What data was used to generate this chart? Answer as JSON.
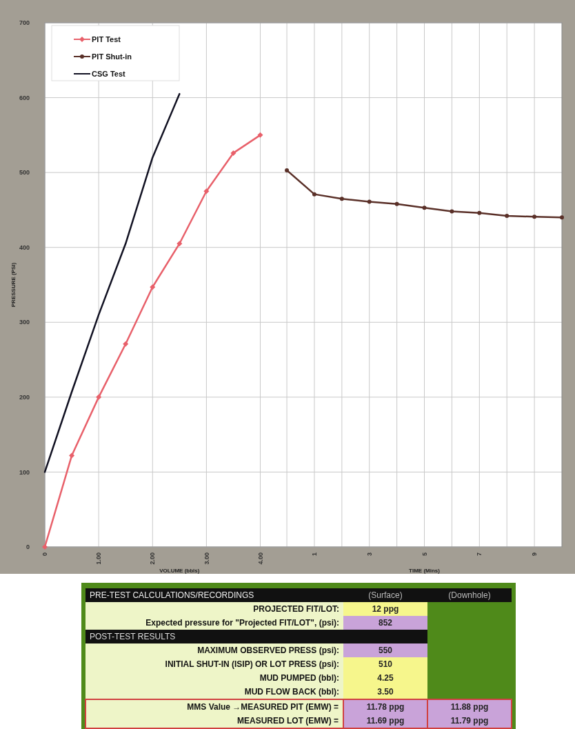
{
  "chart_data": [
    {
      "type": "line",
      "ylabel": "PRESSURE (PSI)",
      "xlabel": "VOLUME (bbls)",
      "x2label": "TIME (Mins)",
      "xlim": [
        0,
        9.6
      ],
      "xticks": [
        0,
        {
          "value": 1,
          "label": "1.00"
        },
        {
          "value": 2,
          "label": "2.00"
        },
        {
          "value": 3,
          "label": "3.00"
        },
        {
          "value": 4,
          "label": "4.00"
        }
      ],
      "x2lim": [
        -8.8,
        10
      ],
      "x2ticks": [
        {
          "value": 0,
          "label": null
        },
        1,
        {
          "value": 2,
          "label": null
        },
        3,
        {
          "value": 4,
          "label": null
        },
        5,
        {
          "value": 6,
          "label": null
        },
        7,
        {
          "value": 8,
          "label": null
        },
        9
      ],
      "ylim": [
        0,
        700
      ],
      "yticks": [
        0,
        100,
        200,
        300,
        400,
        500,
        600,
        700
      ],
      "grid": true,
      "legend": "top left",
      "series": [
        {
          "name": "PIT Test",
          "color": "#e8606a",
          "marker": "diamond",
          "x": [
            0,
            0.5,
            1,
            1.5,
            2,
            2.5,
            3,
            3.5,
            4
          ],
          "values": [
            0,
            122,
            200,
            271,
            347,
            405,
            475,
            526,
            550
          ]
        },
        {
          "name": "PIT Shut-in",
          "color": "#5a3028",
          "marker": "circle",
          "axis": "x2",
          "x": [
            0,
            1,
            2,
            3,
            4,
            5,
            6,
            7,
            8,
            9,
            10
          ],
          "values": [
            503,
            471,
            465,
            461,
            458,
            453,
            448,
            446,
            442,
            441,
            440
          ]
        },
        {
          "name": "CSG Test",
          "color": "#111122",
          "marker": "none",
          "x": [
            0,
            0.5,
            1,
            1.5,
            2,
            2.5
          ],
          "values": [
            100,
            207,
            310,
            405,
            520,
            605
          ]
        }
      ]
    },
    {
      "type": "other",
      "title": "PRE-TEST CALCULATIONS/RECORDINGS",
      "categories": [
        "(Surface)",
        "(Downhole)"
      ],
      "y_categories": [
        "PROJECTED FIT/LOT:",
        "Expected pressure for \"Projected FIT/LOT\", (psi):",
        "POST-TEST RESULTS",
        "MAXIMUM OBSERVED PRESS (psi):",
        "INITIAL SHUT-IN (ISIP) OR LOT PRESS (psi):",
        "MUD PUMPED (bbl):",
        "MUD FLOW BACK (bbl):",
        "MMS Value →MEASURED PIT (EMW) =",
        "MEASURED LOT (EMW) ="
      ],
      "cell_labels": [
        [
          "12 ppg",
          null
        ],
        [
          "852",
          null
        ],
        [
          null,
          null
        ],
        [
          "550",
          null
        ],
        [
          "510",
          null
        ],
        [
          "4.25",
          null
        ],
        [
          "3.50",
          null
        ],
        [
          "11.78 ppg",
          "11.88 ppg"
        ],
        [
          "11.69 ppg",
          "11.79 ppg"
        ]
      ]
    }
  ]
}
